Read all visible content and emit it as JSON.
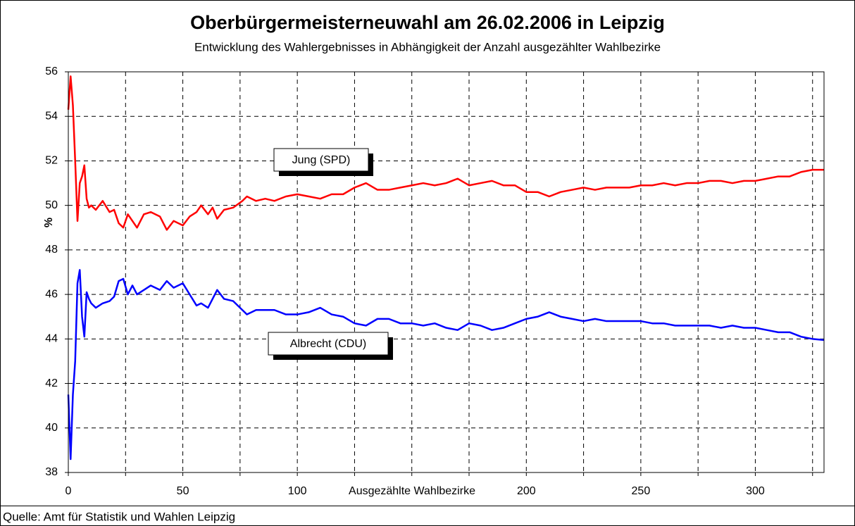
{
  "chart_data": {
    "type": "line",
    "title": "Oberbürgermeisterneuwahl am 26.02.2006 in Leipzig",
    "subtitle": "Entwicklung des Wahlergebnisses in Abhängigkeit der Anzahl ausgezählter Wahlbezirke",
    "x_label": "Ausgezählte Wahlbezirke",
    "y_label": "%",
    "source": "Quelle: Amt für Statistik und Wahlen Leipzig",
    "xlim": [
      0,
      330
    ],
    "ylim": [
      38,
      56
    ],
    "xticks": [
      0,
      50,
      100,
      200,
      250,
      300
    ],
    "xminor_ticks": [
      25,
      75,
      125,
      150,
      175,
      225,
      275,
      325
    ],
    "yticks": [
      38,
      40,
      42,
      44,
      46,
      48,
      50,
      52,
      54,
      56
    ],
    "grid": true,
    "x": [
      0,
      1,
      2,
      3,
      4,
      5,
      6,
      7,
      8,
      9,
      10,
      12,
      15,
      18,
      20,
      22,
      24,
      26,
      28,
      30,
      33,
      36,
      40,
      43,
      46,
      50,
      53,
      56,
      58,
      61,
      63,
      65,
      68,
      72,
      76,
      78,
      82,
      86,
      90,
      95,
      100,
      105,
      110,
      115,
      120,
      125,
      130,
      135,
      140,
      145,
      150,
      155,
      160,
      165,
      170,
      175,
      180,
      185,
      190,
      195,
      200,
      205,
      210,
      215,
      220,
      225,
      230,
      235,
      240,
      245,
      250,
      255,
      260,
      265,
      270,
      275,
      280,
      285,
      290,
      295,
      300,
      305,
      310,
      315,
      320,
      325,
      330
    ],
    "series": [
      {
        "name": "Jung (SPD)",
        "color": "#ff0000",
        "values": [
          54.3,
          55.8,
          54.5,
          52,
          49.3,
          51,
          51.3,
          51.8,
          50.3,
          49.9,
          50.0,
          49.8,
          50.2,
          49.7,
          49.8,
          49.2,
          49.0,
          49.6,
          49.3,
          49.0,
          49.6,
          49.7,
          49.5,
          48.9,
          49.3,
          49.1,
          49.5,
          49.7,
          50.0,
          49.6,
          49.9,
          49.4,
          49.8,
          49.9,
          50.2,
          50.4,
          50.2,
          50.3,
          50.2,
          50.4,
          50.5,
          50.4,
          50.3,
          50.5,
          50.5,
          50.8,
          51.0,
          50.7,
          50.7,
          50.8,
          50.9,
          51.0,
          50.9,
          51.0,
          51.2,
          50.9,
          51.0,
          51.1,
          50.9,
          50.9,
          50.6,
          50.6,
          50.4,
          50.6,
          50.7,
          50.8,
          50.7,
          50.8,
          50.8,
          50.8,
          50.9,
          50.9,
          51.0,
          50.9,
          51.0,
          51.0,
          51.1,
          51.1,
          51.0,
          51.1,
          51.1,
          51.2,
          51.3,
          51.3,
          51.5,
          51.6,
          51.6
        ]
      },
      {
        "name": "Albrecht (CDU)",
        "color": "#0000ff",
        "values": [
          41.5,
          38.6,
          41.5,
          43,
          46.5,
          47.1,
          45,
          44.1,
          46.1,
          45.8,
          45.6,
          45.4,
          45.6,
          45.7,
          45.9,
          46.6,
          46.7,
          46.0,
          46.4,
          46.0,
          46.2,
          46.4,
          46.2,
          46.6,
          46.3,
          46.5,
          46.0,
          45.5,
          45.6,
          45.4,
          45.8,
          46.2,
          45.8,
          45.7,
          45.3,
          45.1,
          45.3,
          45.3,
          45.3,
          45.1,
          45.1,
          45.2,
          45.4,
          45.1,
          45.0,
          44.7,
          44.6,
          44.9,
          44.9,
          44.7,
          44.7,
          44.6,
          44.7,
          44.5,
          44.4,
          44.7,
          44.6,
          44.4,
          44.5,
          44.7,
          44.9,
          45.0,
          45.2,
          45.0,
          44.9,
          44.8,
          44.9,
          44.8,
          44.8,
          44.8,
          44.8,
          44.7,
          44.7,
          44.6,
          44.6,
          44.6,
          44.6,
          44.5,
          44.6,
          44.5,
          44.5,
          44.4,
          44.3,
          44.3,
          44.1,
          44.0,
          43.95
        ]
      }
    ]
  }
}
